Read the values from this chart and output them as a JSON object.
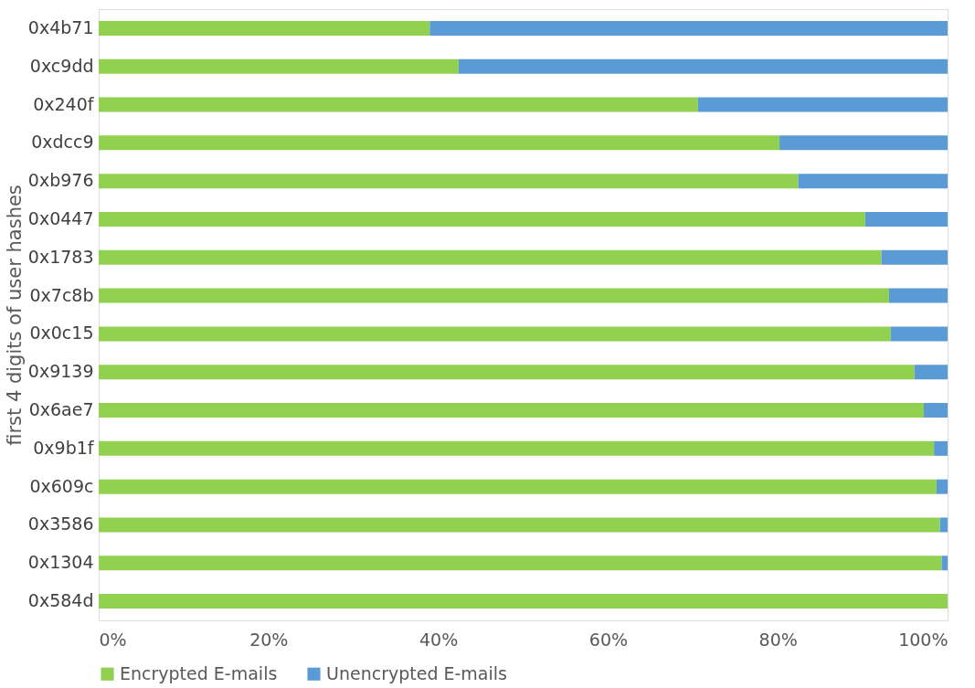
{
  "chart_data": {
    "type": "bar",
    "orientation": "horizontal",
    "stacked": true,
    "ylabel": "first 4 digits of user hashes",
    "categories": [
      "0x4b71",
      "0xc9dd",
      "0x240f",
      "0xdcc9",
      "0xb976",
      "0x0447",
      "0x1783",
      "0x7c8b",
      "0x0c15",
      "0x9139",
      "0x6ae7",
      "0x9b1f",
      "0x609c",
      "0x3586",
      "0x1304",
      "0x584d"
    ],
    "series": [
      {
        "name": "Encrypted E-mails",
        "color": "#92d050",
        "values": [
          39.0,
          42.4,
          70.6,
          80.2,
          82.4,
          90.3,
          92.2,
          93.1,
          93.3,
          96.1,
          97.2,
          98.4,
          98.7,
          99.1,
          99.3,
          100
        ]
      },
      {
        "name": "Unencrypted E-mails",
        "color": "#5b9bd5",
        "values": [
          61.0,
          57.6,
          29.4,
          19.8,
          17.6,
          9.7,
          7.8,
          6.9,
          6.7,
          3.9,
          2.8,
          1.6,
          1.3,
          0.9,
          0.7,
          0
        ]
      }
    ],
    "xlim": [
      0,
      100
    ],
    "xticks": [
      {
        "value": 0,
        "label": "0%"
      },
      {
        "value": 20,
        "label": "20%"
      },
      {
        "value": 40,
        "label": "40%"
      },
      {
        "value": 60,
        "label": "60%"
      },
      {
        "value": 80,
        "label": "80%"
      },
      {
        "value": 100,
        "label": "100%"
      }
    ],
    "grid": false,
    "legend": "bottom"
  }
}
